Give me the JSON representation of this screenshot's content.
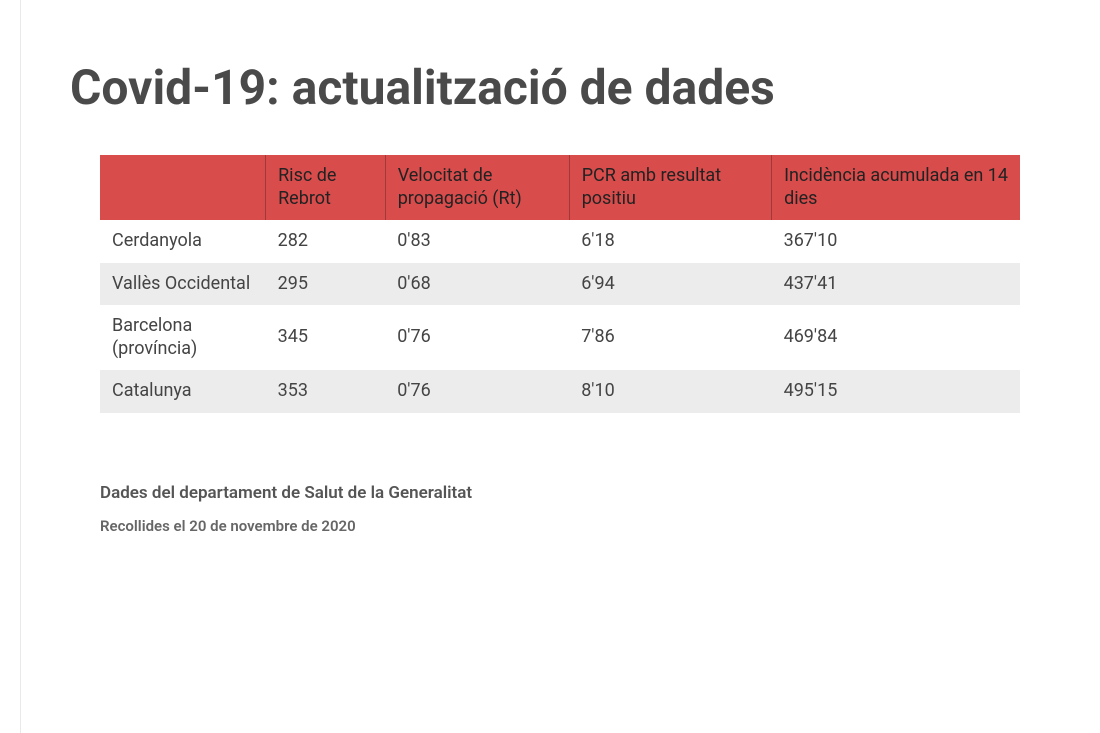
{
  "title": "Covid-19: actualització de dades",
  "table": {
    "type": "table",
    "header_bg": "#d94c4c",
    "header_text_color": "#222222",
    "row_bg_odd": "#ffffff",
    "row_bg_even": "#ececec",
    "cell_text_color": "#444444",
    "font_size": 18,
    "col_widths_pct": [
      18,
      13,
      20,
      22,
      27
    ],
    "columns": [
      "",
      "Risc de Rebrot",
      "Velocitat de propagació (Rt)",
      "PCR amb resultat positiu",
      "Incidència acumulada en 14 dies"
    ],
    "rows": [
      {
        "region": "Cerdanyola",
        "risc": "282",
        "rt": "0'83",
        "pcr": "6'18",
        "inc": "367'10"
      },
      {
        "region": "Vallès Occidental",
        "risc": "295",
        "rt": "0'68",
        "pcr": "6'94",
        "inc": "437'41"
      },
      {
        "region": "Barcelona (província)",
        "risc": "345",
        "rt": "0'76",
        "pcr": "7'86",
        "inc": "469'84"
      },
      {
        "region": "Catalunya",
        "risc": "353",
        "rt": "0'76",
        "pcr": "8'10",
        "inc": "495'15"
      }
    ]
  },
  "footer": {
    "source": "Dades del departament de Salut de la Generalitat",
    "collected": "Recollides el 20 de novembre de 2020"
  },
  "page_style": {
    "background": "#ffffff",
    "title_color": "#4a4a4a",
    "title_fontsize": 48
  }
}
